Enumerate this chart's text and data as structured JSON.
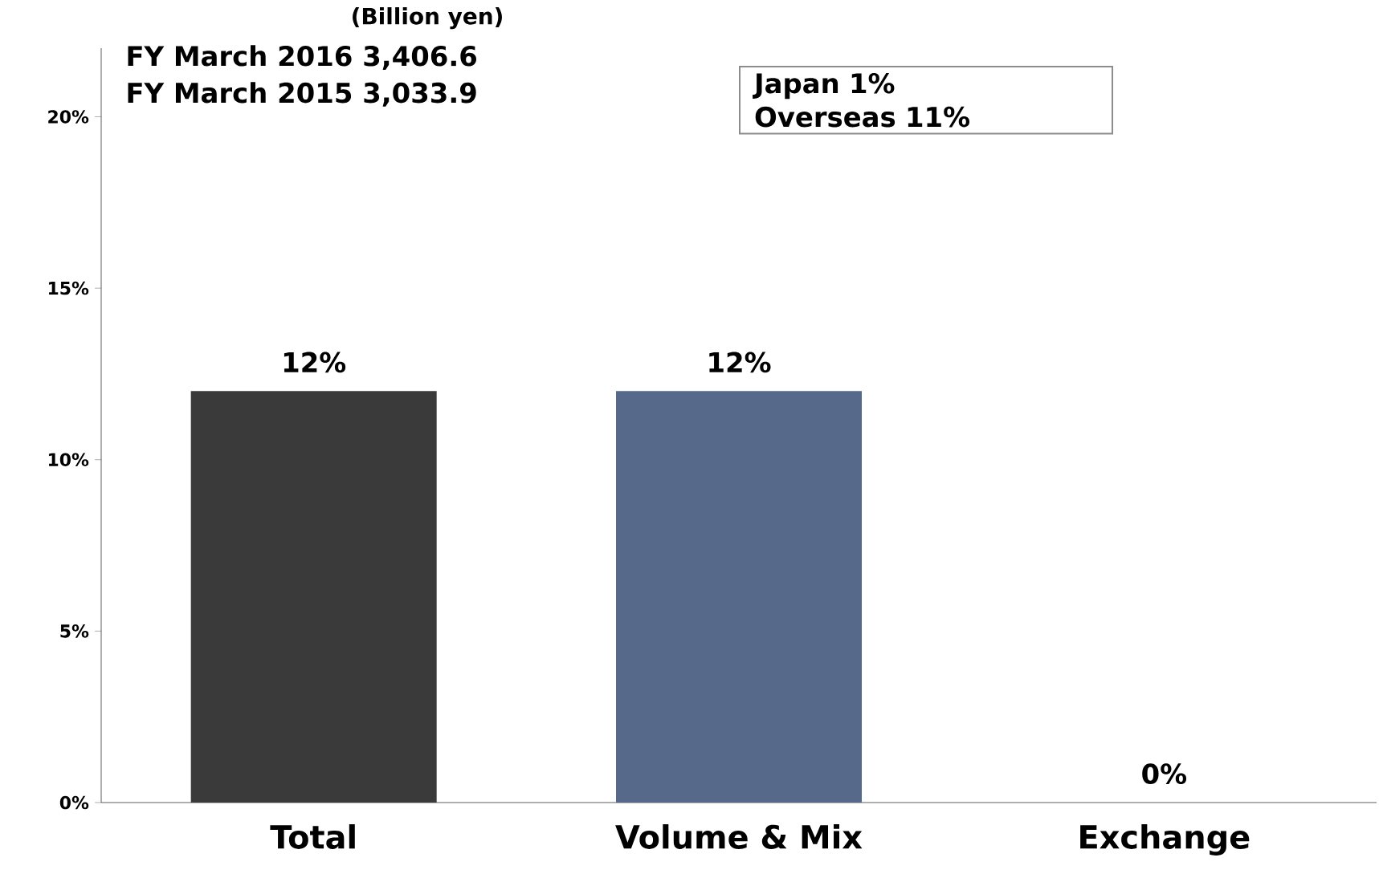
{
  "chart_data": {
    "type": "bar",
    "categories": [
      "Total",
      "Volume & Mix",
      "Exchange"
    ],
    "values": [
      12,
      12,
      0
    ],
    "colors": [
      "#3a3a3a",
      "#56698a",
      "#56698a"
    ],
    "value_labels": [
      "12%",
      "12%",
      "0%"
    ],
    "ylim": [
      0,
      22
    ],
    "yticks": [
      {
        "value": 0,
        "label": "0%"
      },
      {
        "value": 5,
        "label": "5%"
      },
      {
        "value": 10,
        "label": "10%"
      },
      {
        "value": 15,
        "label": "15%"
      },
      {
        "value": 20,
        "label": "20%"
      }
    ],
    "annotations": [
      "(Billion yen)",
      "FY March 2016 3,406.6",
      "FY March 2015 3,033.9",
      "Japan 1%",
      "Overseas 11%"
    ]
  }
}
